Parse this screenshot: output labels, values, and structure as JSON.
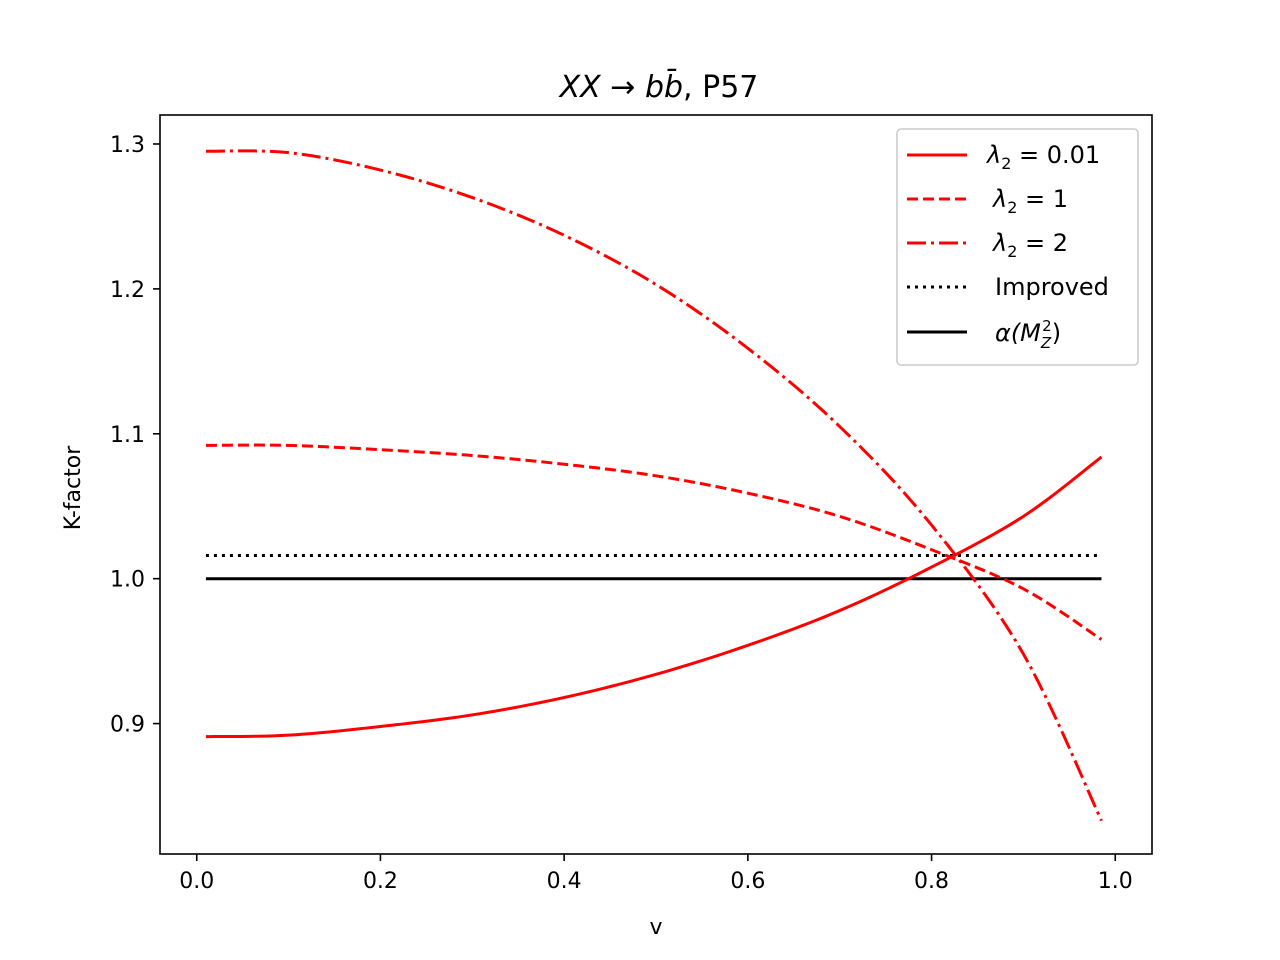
{
  "chart_data": {
    "type": "line",
    "title": "XX → bb̄, P57",
    "title_parts": [
      "XX",
      " → ",
      "b",
      "b̄",
      ", P57"
    ],
    "xlabel": "v",
    "ylabel": "K-factor",
    "xlim": [
      -0.04,
      1.04
    ],
    "ylim": [
      0.81,
      1.32
    ],
    "xticks": [
      0.0,
      0.2,
      0.4,
      0.6,
      0.8,
      1.0
    ],
    "xtick_labels": [
      "0.0",
      "0.2",
      "0.4",
      "0.6",
      "0.8",
      "1.0"
    ],
    "yticks": [
      0.9,
      1.0,
      1.1,
      1.2,
      1.3
    ],
    "ytick_labels": [
      "0.9",
      "1.0",
      "1.1",
      "1.2",
      "1.3"
    ],
    "grid": false,
    "legend_position": "top-right",
    "x": [
      0.01,
      0.1,
      0.2,
      0.3,
      0.4,
      0.5,
      0.6,
      0.7,
      0.8,
      0.9,
      0.985
    ],
    "series": [
      {
        "name": "λ₂ = 0.01",
        "legend_parts": [
          "λ",
          "2",
          " = 0.01"
        ],
        "color": "#ff0000",
        "dash": "solid",
        "values": [
          0.891,
          0.892,
          0.898,
          0.906,
          0.918,
          0.934,
          0.954,
          0.978,
          1.008,
          1.043,
          1.084
        ]
      },
      {
        "name": "λ₂ = 1",
        "legend_parts": [
          "λ",
          "2",
          " = 1"
        ],
        "color": "#ff0000",
        "dash": "dashed",
        "values": [
          1.092,
          1.092,
          1.089,
          1.085,
          1.079,
          1.071,
          1.059,
          1.043,
          1.02,
          0.993,
          0.958
        ]
      },
      {
        "name": "λ₂ = 2",
        "legend_parts": [
          "λ",
          "2",
          " = 2"
        ],
        "color": "#ff0000",
        "dash": "dashdot",
        "values": [
          1.295,
          1.294,
          1.282,
          1.263,
          1.237,
          1.203,
          1.159,
          1.105,
          1.037,
          0.948,
          0.833
        ]
      },
      {
        "name": "Improved",
        "legend_parts": [
          "Improved",
          "",
          ""
        ],
        "color": "#000000",
        "dash": "dotted",
        "values": [
          1.016,
          1.016,
          1.016,
          1.016,
          1.016,
          1.016,
          1.016,
          1.016,
          1.016,
          1.016,
          1.016
        ]
      },
      {
        "name": "α(M_Z²)",
        "legend_parts": [
          "α(M",
          "Z",
          "2",
          ")"
        ],
        "color": "#000000",
        "dash": "solid",
        "values": [
          1.0,
          1.0,
          1.0,
          1.0,
          1.0,
          1.0,
          1.0,
          1.0,
          1.0,
          1.0,
          1.0
        ]
      }
    ]
  }
}
